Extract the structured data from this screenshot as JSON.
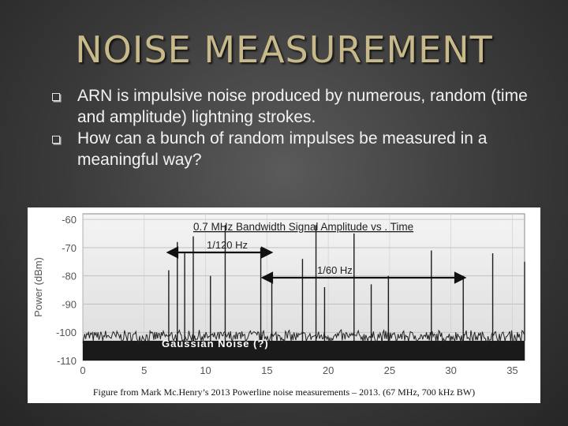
{
  "slide": {
    "title": "NOISE MEASUREMENT",
    "bullets": [
      " ARN is impulsive noise produced by numerous, random (time and amplitude) lightning strokes.",
      "How can a bunch of random impulses be measured in a meaningful way?"
    ],
    "caption": "Figure from Mark Mc.Henry’s 2013 Powerline noise measurements – 2013.   (67 MHz, 700 kHz BW)"
  },
  "chart_data": {
    "type": "line",
    "title": "0.7 MHz Bandwidth Signal Amplitude vs     . Time",
    "xlabel": "",
    "ylabel": "Power (dBm)",
    "xlim": [
      0,
      36
    ],
    "ylim": [
      -110,
      -58
    ],
    "xticks": [
      "0",
      "5",
      "10",
      "15",
      "20",
      "25",
      "30",
      "35"
    ],
    "yticks": [
      "-60",
      "-70",
      "-80",
      "-90",
      "-100",
      "-110"
    ],
    "grid": true,
    "annotations": {
      "period1": "1/120 Hz",
      "period2": "1/60 Hz",
      "noise_label": "Gaussian Noise (?)"
    },
    "noise_floor_dbm": -103,
    "impulses": [
      {
        "x": 7.0,
        "y": -78
      },
      {
        "x": 7.7,
        "y": -68
      },
      {
        "x": 8.3,
        "y": -72
      },
      {
        "x": 9.0,
        "y": -66
      },
      {
        "x": 10.4,
        "y": -80
      },
      {
        "x": 11.6,
        "y": -62
      },
      {
        "x": 14.5,
        "y": -70
      },
      {
        "x": 15.4,
        "y": -82
      },
      {
        "x": 17.9,
        "y": -74
      },
      {
        "x": 19.0,
        "y": -62
      },
      {
        "x": 19.7,
        "y": -84
      },
      {
        "x": 22.1,
        "y": -65
      },
      {
        "x": 23.5,
        "y": -83
      },
      {
        "x": 24.9,
        "y": -80
      },
      {
        "x": 28.4,
        "y": -71
      },
      {
        "x": 31.0,
        "y": -80
      },
      {
        "x": 33.4,
        "y": -72
      },
      {
        "x": 36.0,
        "y": -75
      }
    ]
  }
}
